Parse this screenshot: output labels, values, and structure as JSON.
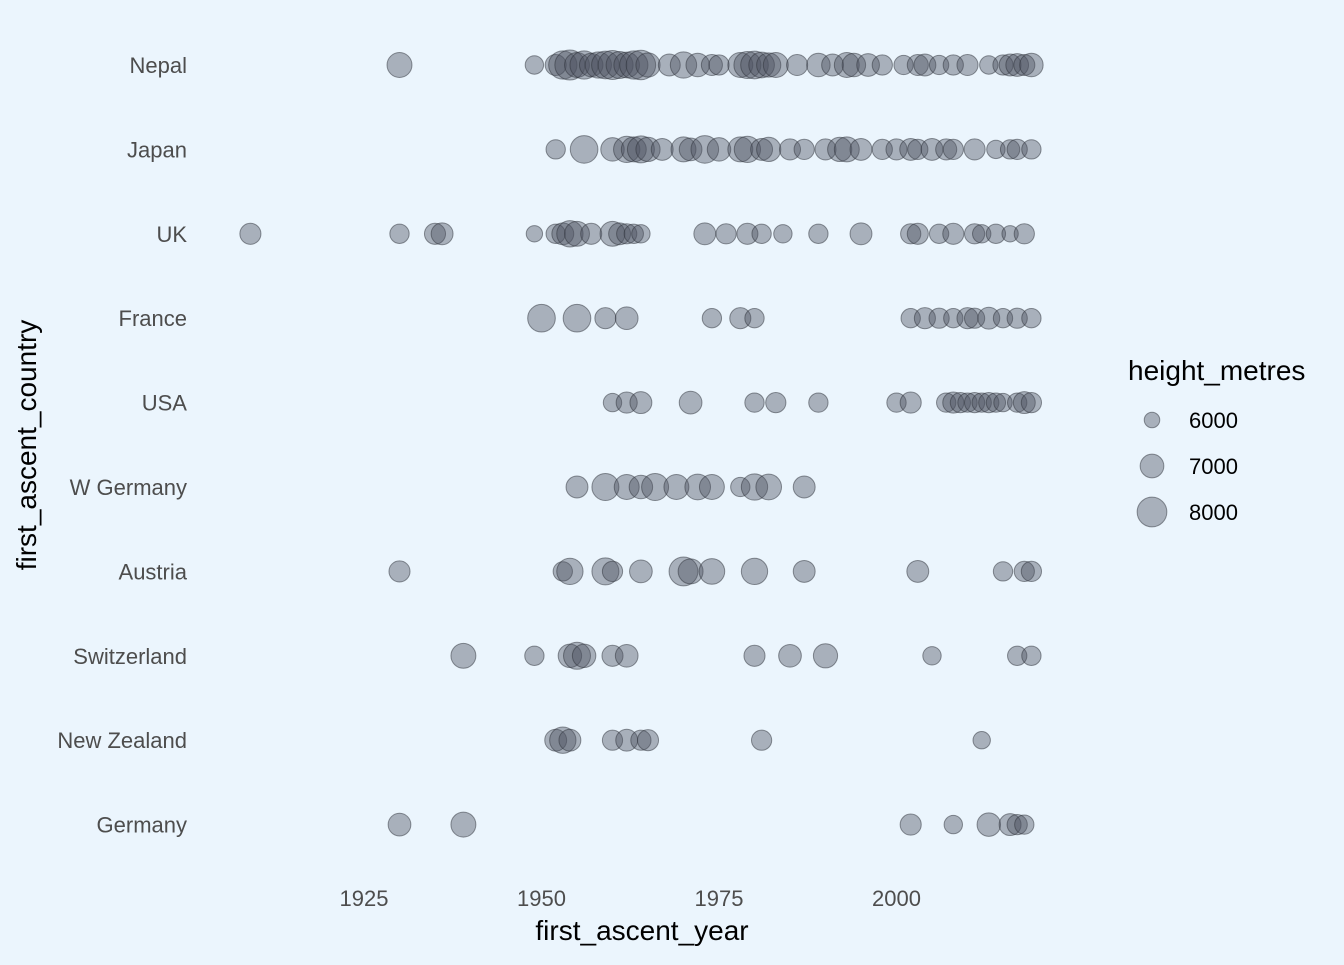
{
  "chart_data": {
    "type": "scatter",
    "xlabel": "first_ascent_year",
    "ylabel": "first_ascent_country",
    "xlim": [
      1905,
      2025
    ],
    "x_ticks": [
      1925,
      1950,
      1975,
      2000
    ],
    "grid": false,
    "legend": {
      "title": "height_metres",
      "position": "right",
      "entries": [
        {
          "label": "6000",
          "value": 6000
        },
        {
          "label": "7000",
          "value": 7000
        },
        {
          "label": "8000",
          "value": 8000
        }
      ]
    },
    "categories": [
      "Nepal",
      "Japan",
      "UK",
      "France",
      "USA",
      "W Germany",
      "Austria",
      "Switzerland",
      "New Zealand",
      "Germany"
    ],
    "series": [
      {
        "country": "Nepal",
        "points": [
          [
            1930,
            7000
          ],
          [
            1949,
            6200
          ],
          [
            1952,
            6500
          ],
          [
            1953,
            7500
          ],
          [
            1954,
            7800
          ],
          [
            1955,
            7000
          ],
          [
            1956,
            7500
          ],
          [
            1957,
            6800
          ],
          [
            1958,
            7200
          ],
          [
            1959,
            7400
          ],
          [
            1960,
            7600
          ],
          [
            1961,
            7300
          ],
          [
            1962,
            7100
          ],
          [
            1963,
            7500
          ],
          [
            1964,
            7700
          ],
          [
            1965,
            6900
          ],
          [
            1968,
            6600
          ],
          [
            1970,
            7200
          ],
          [
            1972,
            6800
          ],
          [
            1974,
            6500
          ],
          [
            1975,
            6400
          ],
          [
            1978,
            7000
          ],
          [
            1979,
            7300
          ],
          [
            1980,
            7400
          ],
          [
            1981,
            7100
          ],
          [
            1982,
            6900
          ],
          [
            1983,
            7000
          ],
          [
            1986,
            6500
          ],
          [
            1989,
            6800
          ],
          [
            1991,
            6600
          ],
          [
            1993,
            7000
          ],
          [
            1994,
            6800
          ],
          [
            1996,
            6700
          ],
          [
            1998,
            6400
          ],
          [
            2001,
            6300
          ],
          [
            2003,
            6500
          ],
          [
            2004,
            6600
          ],
          [
            2006,
            6300
          ],
          [
            2008,
            6400
          ],
          [
            2010,
            6500
          ],
          [
            2013,
            6200
          ],
          [
            2015,
            6400
          ],
          [
            2016,
            6600
          ],
          [
            2017,
            6700
          ],
          [
            2018,
            6500
          ],
          [
            2019,
            6800
          ]
        ]
      },
      {
        "country": "Japan",
        "points": [
          [
            1952,
            6300
          ],
          [
            1956,
            7400
          ],
          [
            1960,
            6800
          ],
          [
            1962,
            7200
          ],
          [
            1963,
            7000
          ],
          [
            1964,
            7300
          ],
          [
            1965,
            6900
          ],
          [
            1967,
            6600
          ],
          [
            1970,
            7000
          ],
          [
            1971,
            6700
          ],
          [
            1973,
            7400
          ],
          [
            1975,
            6800
          ],
          [
            1978,
            7000
          ],
          [
            1979,
            7200
          ],
          [
            1981,
            6600
          ],
          [
            1982,
            6900
          ],
          [
            1985,
            6500
          ],
          [
            1987,
            6400
          ],
          [
            1990,
            6500
          ],
          [
            1992,
            6900
          ],
          [
            1993,
            7000
          ],
          [
            1995,
            6600
          ],
          [
            1998,
            6400
          ],
          [
            2000,
            6500
          ],
          [
            2002,
            6600
          ],
          [
            2003,
            6400
          ],
          [
            2005,
            6600
          ],
          [
            2007,
            6500
          ],
          [
            2008,
            6400
          ],
          [
            2011,
            6500
          ],
          [
            2014,
            6200
          ],
          [
            2016,
            6300
          ],
          [
            2017,
            6400
          ],
          [
            2019,
            6300
          ]
        ]
      },
      {
        "country": "UK",
        "points": [
          [
            1909,
            6500
          ],
          [
            1930,
            6300
          ],
          [
            1935,
            6500
          ],
          [
            1936,
            6600
          ],
          [
            1949,
            6000
          ],
          [
            1952,
            6300
          ],
          [
            1953,
            6600
          ],
          [
            1954,
            7200
          ],
          [
            1955,
            7000
          ],
          [
            1957,
            6500
          ],
          [
            1960,
            7000
          ],
          [
            1961,
            6600
          ],
          [
            1962,
            6400
          ],
          [
            1963,
            6300
          ],
          [
            1964,
            6200
          ],
          [
            1973,
            6600
          ],
          [
            1976,
            6400
          ],
          [
            1979,
            6500
          ],
          [
            1981,
            6300
          ],
          [
            1984,
            6200
          ],
          [
            1989,
            6300
          ],
          [
            1995,
            6600
          ],
          [
            2002,
            6400
          ],
          [
            2003,
            6500
          ],
          [
            2006,
            6300
          ],
          [
            2008,
            6500
          ],
          [
            2011,
            6400
          ],
          [
            2012,
            6200
          ],
          [
            2014,
            6300
          ],
          [
            2016,
            6000
          ],
          [
            2018,
            6400
          ]
        ]
      },
      {
        "country": "France",
        "points": [
          [
            1950,
            7400
          ],
          [
            1955,
            7400
          ],
          [
            1959,
            6500
          ],
          [
            1962,
            6700
          ],
          [
            1974,
            6300
          ],
          [
            1978,
            6500
          ],
          [
            1980,
            6300
          ],
          [
            2002,
            6300
          ],
          [
            2004,
            6500
          ],
          [
            2006,
            6400
          ],
          [
            2008,
            6300
          ],
          [
            2010,
            6500
          ],
          [
            2011,
            6400
          ],
          [
            2013,
            6600
          ],
          [
            2015,
            6300
          ],
          [
            2017,
            6400
          ],
          [
            2019,
            6300
          ]
        ]
      },
      {
        "country": "USA",
        "points": [
          [
            1960,
            6200
          ],
          [
            1962,
            6500
          ],
          [
            1964,
            6600
          ],
          [
            1971,
            6700
          ],
          [
            1980,
            6300
          ],
          [
            1983,
            6400
          ],
          [
            1989,
            6300
          ],
          [
            2000,
            6300
          ],
          [
            2002,
            6500
          ],
          [
            2007,
            6300
          ],
          [
            2008,
            6500
          ],
          [
            2009,
            6400
          ],
          [
            2010,
            6300
          ],
          [
            2011,
            6400
          ],
          [
            2012,
            6300
          ],
          [
            2013,
            6400
          ],
          [
            2014,
            6300
          ],
          [
            2015,
            6200
          ],
          [
            2017,
            6300
          ],
          [
            2018,
            6600
          ],
          [
            2019,
            6400
          ]
        ]
      },
      {
        "country": "W Germany",
        "points": [
          [
            1955,
            6600
          ],
          [
            1959,
            7300
          ],
          [
            1962,
            7000
          ],
          [
            1964,
            6800
          ],
          [
            1966,
            7300
          ],
          [
            1969,
            7000
          ],
          [
            1972,
            7100
          ],
          [
            1974,
            7000
          ],
          [
            1978,
            6300
          ],
          [
            1980,
            7200
          ],
          [
            1982,
            7100
          ],
          [
            1987,
            6600
          ]
        ]
      },
      {
        "country": "Austria",
        "points": [
          [
            1930,
            6500
          ],
          [
            1953,
            6300
          ],
          [
            1954,
            7200
          ],
          [
            1959,
            7300
          ],
          [
            1960,
            6400
          ],
          [
            1964,
            6700
          ],
          [
            1970,
            7600
          ],
          [
            1971,
            7000
          ],
          [
            1974,
            7100
          ],
          [
            1980,
            7200
          ],
          [
            1987,
            6600
          ],
          [
            2003,
            6600
          ],
          [
            2015,
            6300
          ],
          [
            2018,
            6400
          ],
          [
            2019,
            6400
          ]
        ]
      },
      {
        "country": "Switzerland",
        "points": [
          [
            1939,
            7000
          ],
          [
            1949,
            6300
          ],
          [
            1954,
            6800
          ],
          [
            1955,
            7300
          ],
          [
            1956,
            6800
          ],
          [
            1960,
            6500
          ],
          [
            1962,
            6700
          ],
          [
            1980,
            6500
          ],
          [
            1985,
            6700
          ],
          [
            1990,
            6900
          ],
          [
            2005,
            6200
          ],
          [
            2017,
            6300
          ],
          [
            2019,
            6300
          ]
        ]
      },
      {
        "country": "New Zealand",
        "points": [
          [
            1952,
            6600
          ],
          [
            1953,
            7200
          ],
          [
            1954,
            6600
          ],
          [
            1960,
            6400
          ],
          [
            1962,
            6600
          ],
          [
            1964,
            6400
          ],
          [
            1965,
            6500
          ],
          [
            1981,
            6400
          ],
          [
            2012,
            6100
          ]
        ]
      },
      {
        "country": "Germany",
        "points": [
          [
            1930,
            6700
          ],
          [
            1939,
            7000
          ],
          [
            2002,
            6500
          ],
          [
            2008,
            6200
          ],
          [
            2013,
            6800
          ],
          [
            2016,
            6600
          ],
          [
            2017,
            6400
          ],
          [
            2018,
            6300
          ]
        ]
      }
    ]
  }
}
